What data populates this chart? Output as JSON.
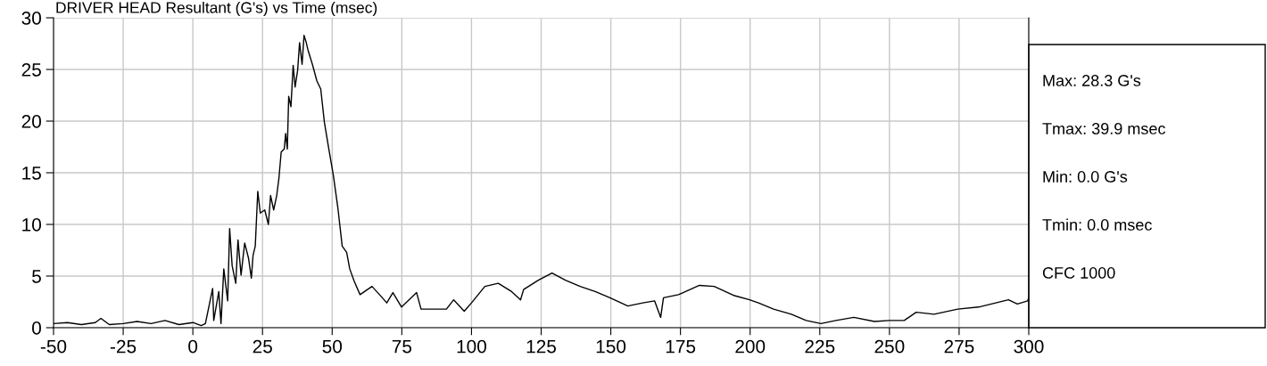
{
  "chart_data": {
    "type": "line",
    "title": "DRIVER HEAD Resultant (G's) vs Time (msec)",
    "x": [
      -50,
      -45,
      -40,
      -35,
      -33,
      -30,
      -25,
      -20,
      -15,
      -10,
      -5,
      0,
      3,
      4.5,
      7.1,
      7.5,
      9.3,
      10.1,
      11.1,
      12.5,
      13.2,
      14.1,
      15.4,
      16.2,
      17.3,
      18.6,
      20.0,
      21.0,
      21.6,
      22.4,
      23.3,
      24.2,
      25.8,
      27.1,
      27.9,
      29.0,
      30.1,
      30.9,
      31.7,
      32.8,
      33.3,
      33.9,
      34.4,
      35.2,
      36.0,
      36.7,
      37.6,
      38.3,
      39.2,
      39.9,
      40.6,
      41.3,
      42.9,
      44.5,
      45.9,
      47.2,
      48.8,
      50.4,
      52.0,
      53.6,
      55.2,
      56.3,
      57.9,
      60.0,
      64.3,
      68.0,
      69.6,
      71.8,
      74.9,
      80.3,
      81.9,
      85.6,
      91.0,
      93.6,
      97.4,
      100.0,
      104.8,
      109.6,
      114.4,
      117.6,
      118.7,
      124.0,
      128.9,
      133.7,
      139.0,
      144.4,
      149.7,
      156.1,
      161.5,
      165.7,
      167.9,
      168.9,
      174.3,
      181.8,
      187.1,
      194.4,
      199.8,
      203.0,
      208.4,
      214.8,
      220.1,
      225.4,
      230.8,
      237.2,
      244.6,
      250.0,
      255.3,
      259.6,
      266.0,
      274.5,
      282.0,
      292.7,
      295.9,
      299.6,
      300
    ],
    "series": [
      {
        "color": "#000000",
        "values": [
          0.4,
          0.5,
          0.3,
          0.5,
          0.9,
          0.3,
          0.4,
          0.6,
          0.4,
          0.7,
          0.3,
          0.5,
          0.2,
          0.4,
          3.8,
          0.7,
          3.5,
          0.4,
          5.7,
          2.6,
          9.6,
          6.0,
          4.3,
          8.5,
          5.1,
          8.2,
          6.7,
          4.8,
          7.0,
          7.9,
          13.2,
          11.1,
          11.4,
          10.0,
          12.8,
          11.4,
          12.8,
          14.5,
          17.0,
          17.3,
          18.8,
          17.3,
          22.4,
          21.4,
          25.4,
          23.3,
          24.9,
          27.6,
          25.5,
          28.3,
          27.7,
          26.9,
          25.5,
          23.9,
          23.1,
          19.9,
          17.3,
          14.8,
          11.7,
          7.9,
          7.3,
          5.7,
          4.5,
          3.2,
          4.0,
          2.9,
          2.4,
          3.4,
          2.0,
          3.4,
          1.8,
          1.8,
          1.8,
          2.7,
          1.6,
          2.4,
          4.0,
          4.3,
          3.5,
          2.7,
          3.7,
          4.6,
          5.3,
          4.6,
          4.0,
          3.5,
          2.9,
          2.1,
          2.4,
          2.6,
          1.0,
          2.9,
          3.2,
          4.1,
          4.0,
          3.1,
          2.7,
          2.4,
          1.8,
          1.3,
          0.7,
          0.4,
          0.7,
          1.0,
          0.6,
          0.7,
          0.7,
          1.5,
          1.3,
          1.8,
          2.0,
          2.7,
          2.3,
          2.6,
          2.9
        ]
      }
    ],
    "xlim": [
      -50,
      300
    ],
    "xticks": [
      -50,
      -25,
      0,
      25,
      50,
      75,
      100,
      125,
      150,
      175,
      200,
      225,
      250,
      275,
      300
    ],
    "ylim": [
      0,
      30
    ],
    "yticks": [
      0,
      5,
      10,
      15,
      20,
      25,
      30
    ],
    "grid": true,
    "annotations": [
      "Max: 28.3 G's",
      "Tmax: 39.9 msec",
      "Min: 0.0 G's",
      "Tmin: 0.0 msec",
      "CFC 1000"
    ]
  }
}
